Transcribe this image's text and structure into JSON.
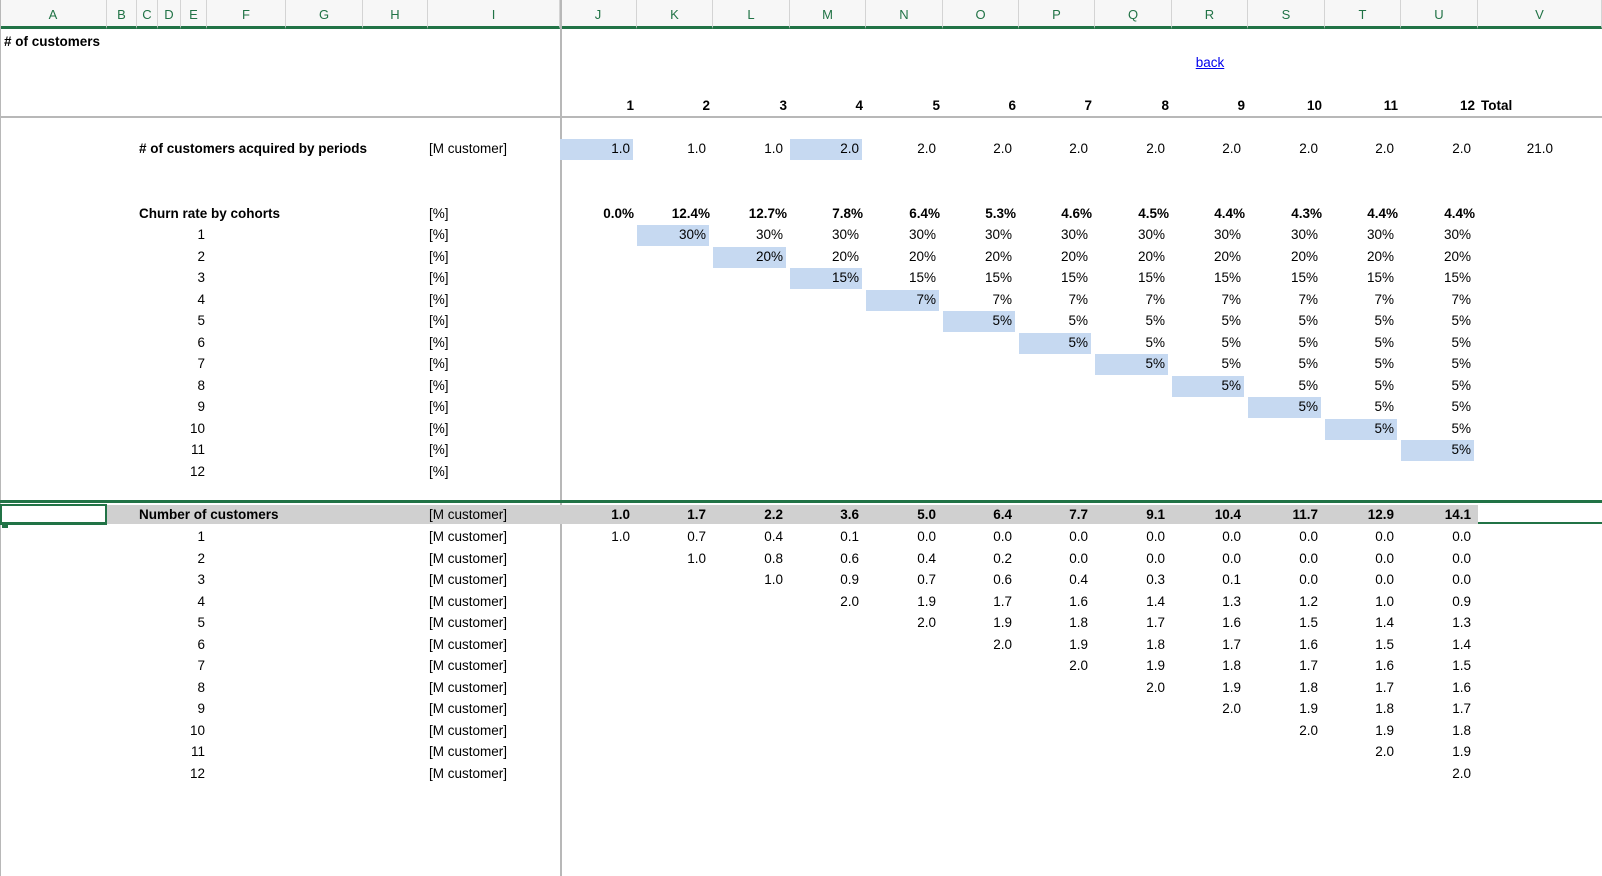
{
  "columns": [
    "A",
    "B",
    "C",
    "D",
    "E",
    "F",
    "G",
    "H",
    "I",
    "J",
    "K",
    "L",
    "M",
    "N",
    "O",
    "P",
    "Q",
    "R",
    "S",
    "T",
    "U",
    "V"
  ],
  "sheet_title": "# of customers",
  "back_link": "back",
  "periods": [
    "1",
    "2",
    "3",
    "4",
    "5",
    "6",
    "7",
    "8",
    "9",
    "10",
    "11",
    "12"
  ],
  "total_label": "Total",
  "acquired": {
    "label": "# of customers acquired by periods",
    "unit": "[M customer]",
    "values": [
      "1.0",
      "1.0",
      "1.0",
      "2.0",
      "2.0",
      "2.0",
      "2.0",
      "2.0",
      "2.0",
      "2.0",
      "2.0",
      "2.0"
    ],
    "total": "21.0"
  },
  "churn": {
    "label": "Churn rate by cohorts",
    "unit": "[%]",
    "summary": [
      "0.0%",
      "12.4%",
      "12.7%",
      "7.8%",
      "6.4%",
      "5.3%",
      "4.6%",
      "4.5%",
      "4.4%",
      "4.3%",
      "4.4%",
      "4.4%"
    ],
    "rows": [
      {
        "cohort": "1",
        "unit": "[%]",
        "values": [
          "",
          "30%",
          "30%",
          "30%",
          "30%",
          "30%",
          "30%",
          "30%",
          "30%",
          "30%",
          "30%",
          "30%"
        ]
      },
      {
        "cohort": "2",
        "unit": "[%]",
        "values": [
          "",
          "",
          "20%",
          "20%",
          "20%",
          "20%",
          "20%",
          "20%",
          "20%",
          "20%",
          "20%",
          "20%"
        ]
      },
      {
        "cohort": "3",
        "unit": "[%]",
        "values": [
          "",
          "",
          "",
          "15%",
          "15%",
          "15%",
          "15%",
          "15%",
          "15%",
          "15%",
          "15%",
          "15%"
        ]
      },
      {
        "cohort": "4",
        "unit": "[%]",
        "values": [
          "",
          "",
          "",
          "",
          "7%",
          "7%",
          "7%",
          "7%",
          "7%",
          "7%",
          "7%",
          "7%"
        ]
      },
      {
        "cohort": "5",
        "unit": "[%]",
        "values": [
          "",
          "",
          "",
          "",
          "",
          "5%",
          "5%",
          "5%",
          "5%",
          "5%",
          "5%",
          "5%"
        ]
      },
      {
        "cohort": "6",
        "unit": "[%]",
        "values": [
          "",
          "",
          "",
          "",
          "",
          "",
          "5%",
          "5%",
          "5%",
          "5%",
          "5%",
          "5%"
        ]
      },
      {
        "cohort": "7",
        "unit": "[%]",
        "values": [
          "",
          "",
          "",
          "",
          "",
          "",
          "",
          "5%",
          "5%",
          "5%",
          "5%",
          "5%"
        ]
      },
      {
        "cohort": "8",
        "unit": "[%]",
        "values": [
          "",
          "",
          "",
          "",
          "",
          "",
          "",
          "",
          "5%",
          "5%",
          "5%",
          "5%"
        ]
      },
      {
        "cohort": "9",
        "unit": "[%]",
        "values": [
          "",
          "",
          "",
          "",
          "",
          "",
          "",
          "",
          "",
          "5%",
          "5%",
          "5%"
        ]
      },
      {
        "cohort": "10",
        "unit": "[%]",
        "values": [
          "",
          "",
          "",
          "",
          "",
          "",
          "",
          "",
          "",
          "",
          "5%",
          "5%"
        ]
      },
      {
        "cohort": "11",
        "unit": "[%]",
        "values": [
          "",
          "",
          "",
          "",
          "",
          "",
          "",
          "",
          "",
          "",
          "",
          "5%"
        ]
      },
      {
        "cohort": "12",
        "unit": "[%]",
        "values": [
          "",
          "",
          "",
          "",
          "",
          "",
          "",
          "",
          "",
          "",
          "",
          ""
        ]
      }
    ]
  },
  "number": {
    "label": "Number of customers",
    "unit": "[M customer]",
    "summary": [
      "1.0",
      "1.7",
      "2.2",
      "3.6",
      "5.0",
      "6.4",
      "7.7",
      "9.1",
      "10.4",
      "11.7",
      "12.9",
      "14.1"
    ],
    "rows": [
      {
        "cohort": "1",
        "unit": "[M customer]",
        "values": [
          "1.0",
          "0.7",
          "0.4",
          "0.1",
          "0.0",
          "0.0",
          "0.0",
          "0.0",
          "0.0",
          "0.0",
          "0.0",
          "0.0"
        ]
      },
      {
        "cohort": "2",
        "unit": "[M customer]",
        "values": [
          "",
          "1.0",
          "0.8",
          "0.6",
          "0.4",
          "0.2",
          "0.0",
          "0.0",
          "0.0",
          "0.0",
          "0.0",
          "0.0"
        ]
      },
      {
        "cohort": "3",
        "unit": "[M customer]",
        "values": [
          "",
          "",
          "1.0",
          "0.9",
          "0.7",
          "0.6",
          "0.4",
          "0.3",
          "0.1",
          "0.0",
          "0.0",
          "0.0"
        ]
      },
      {
        "cohort": "4",
        "unit": "[M customer]",
        "values": [
          "",
          "",
          "",
          "2.0",
          "1.9",
          "1.7",
          "1.6",
          "1.4",
          "1.3",
          "1.2",
          "1.0",
          "0.9"
        ]
      },
      {
        "cohort": "5",
        "unit": "[M customer]",
        "values": [
          "",
          "",
          "",
          "",
          "2.0",
          "1.9",
          "1.8",
          "1.7",
          "1.6",
          "1.5",
          "1.4",
          "1.3"
        ]
      },
      {
        "cohort": "6",
        "unit": "[M customer]",
        "values": [
          "",
          "",
          "",
          "",
          "",
          "2.0",
          "1.9",
          "1.8",
          "1.7",
          "1.6",
          "1.5",
          "1.4"
        ]
      },
      {
        "cohort": "7",
        "unit": "[M customer]",
        "values": [
          "",
          "",
          "",
          "",
          "",
          "",
          "2.0",
          "1.9",
          "1.8",
          "1.7",
          "1.6",
          "1.5"
        ]
      },
      {
        "cohort": "8",
        "unit": "[M customer]",
        "values": [
          "",
          "",
          "",
          "",
          "",
          "",
          "",
          "2.0",
          "1.9",
          "1.8",
          "1.7",
          "1.6"
        ]
      },
      {
        "cohort": "9",
        "unit": "[M customer]",
        "values": [
          "",
          "",
          "",
          "",
          "",
          "",
          "",
          "",
          "2.0",
          "1.9",
          "1.8",
          "1.7"
        ]
      },
      {
        "cohort": "10",
        "unit": "[M customer]",
        "values": [
          "",
          "",
          "",
          "",
          "",
          "",
          "",
          "",
          "",
          "2.0",
          "1.9",
          "1.8"
        ]
      },
      {
        "cohort": "11",
        "unit": "[M customer]",
        "values": [
          "",
          "",
          "",
          "",
          "",
          "",
          "",
          "",
          "",
          "",
          "2.0",
          "1.9"
        ]
      },
      {
        "cohort": "12",
        "unit": "[M customer]",
        "values": [
          "",
          "",
          "",
          "",
          "",
          "",
          "",
          "",
          "",
          "",
          "",
          "2.0"
        ]
      }
    ]
  },
  "colors": {
    "accent": "#217346",
    "input_fill": "#c6d9f1",
    "band_fill": "#d0d0d0",
    "link": "#0000ee"
  }
}
